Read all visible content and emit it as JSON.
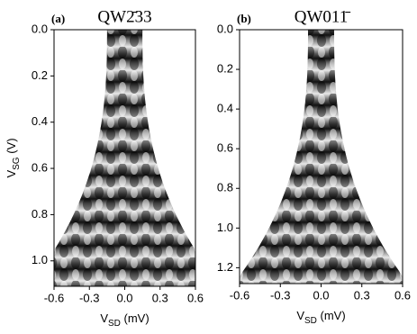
{
  "chart_data": [
    {
      "type": "heatmap",
      "panel_label": "(a)",
      "title": "QW2̄33",
      "xlabel": {
        "text": "V",
        "sub": "SD",
        "suffix": " (mV)"
      },
      "ylabel": {
        "text": "V",
        "sub": "SG",
        "suffix": " (V)"
      },
      "xlim": [
        -0.6,
        0.6
      ],
      "ylim": [
        0,
        1.11
      ],
      "y_inverted": true,
      "xticks": [
        -0.6,
        -0.3,
        {
          "value": 0,
          "label": "0.0"
        },
        0.3,
        0.6
      ],
      "yticks": [
        {
          "value": 0,
          "label": "0.0"
        },
        0.2,
        0.4,
        0.6,
        0.8,
        {
          "value": 1,
          "label": "1.0"
        }
      ]
    },
    {
      "type": "heatmap",
      "panel_label": "(b)",
      "title": "QW011̄",
      "xlabel": {
        "text": "V",
        "sub": "SD",
        "suffix": " (mV)"
      },
      "xlim": [
        -0.6,
        0.6
      ],
      "ylim": [
        0,
        1.28
      ],
      "y_inverted": true,
      "xticks": [
        -0.6,
        -0.3,
        {
          "value": 0,
          "label": "0.0"
        },
        0.3,
        0.6
      ],
      "yticks": [
        {
          "value": 0,
          "label": "0.0"
        },
        0.2,
        0.4,
        0.6,
        0.8,
        {
          "value": 1,
          "label": "1.0"
        },
        1.2
      ]
    }
  ]
}
